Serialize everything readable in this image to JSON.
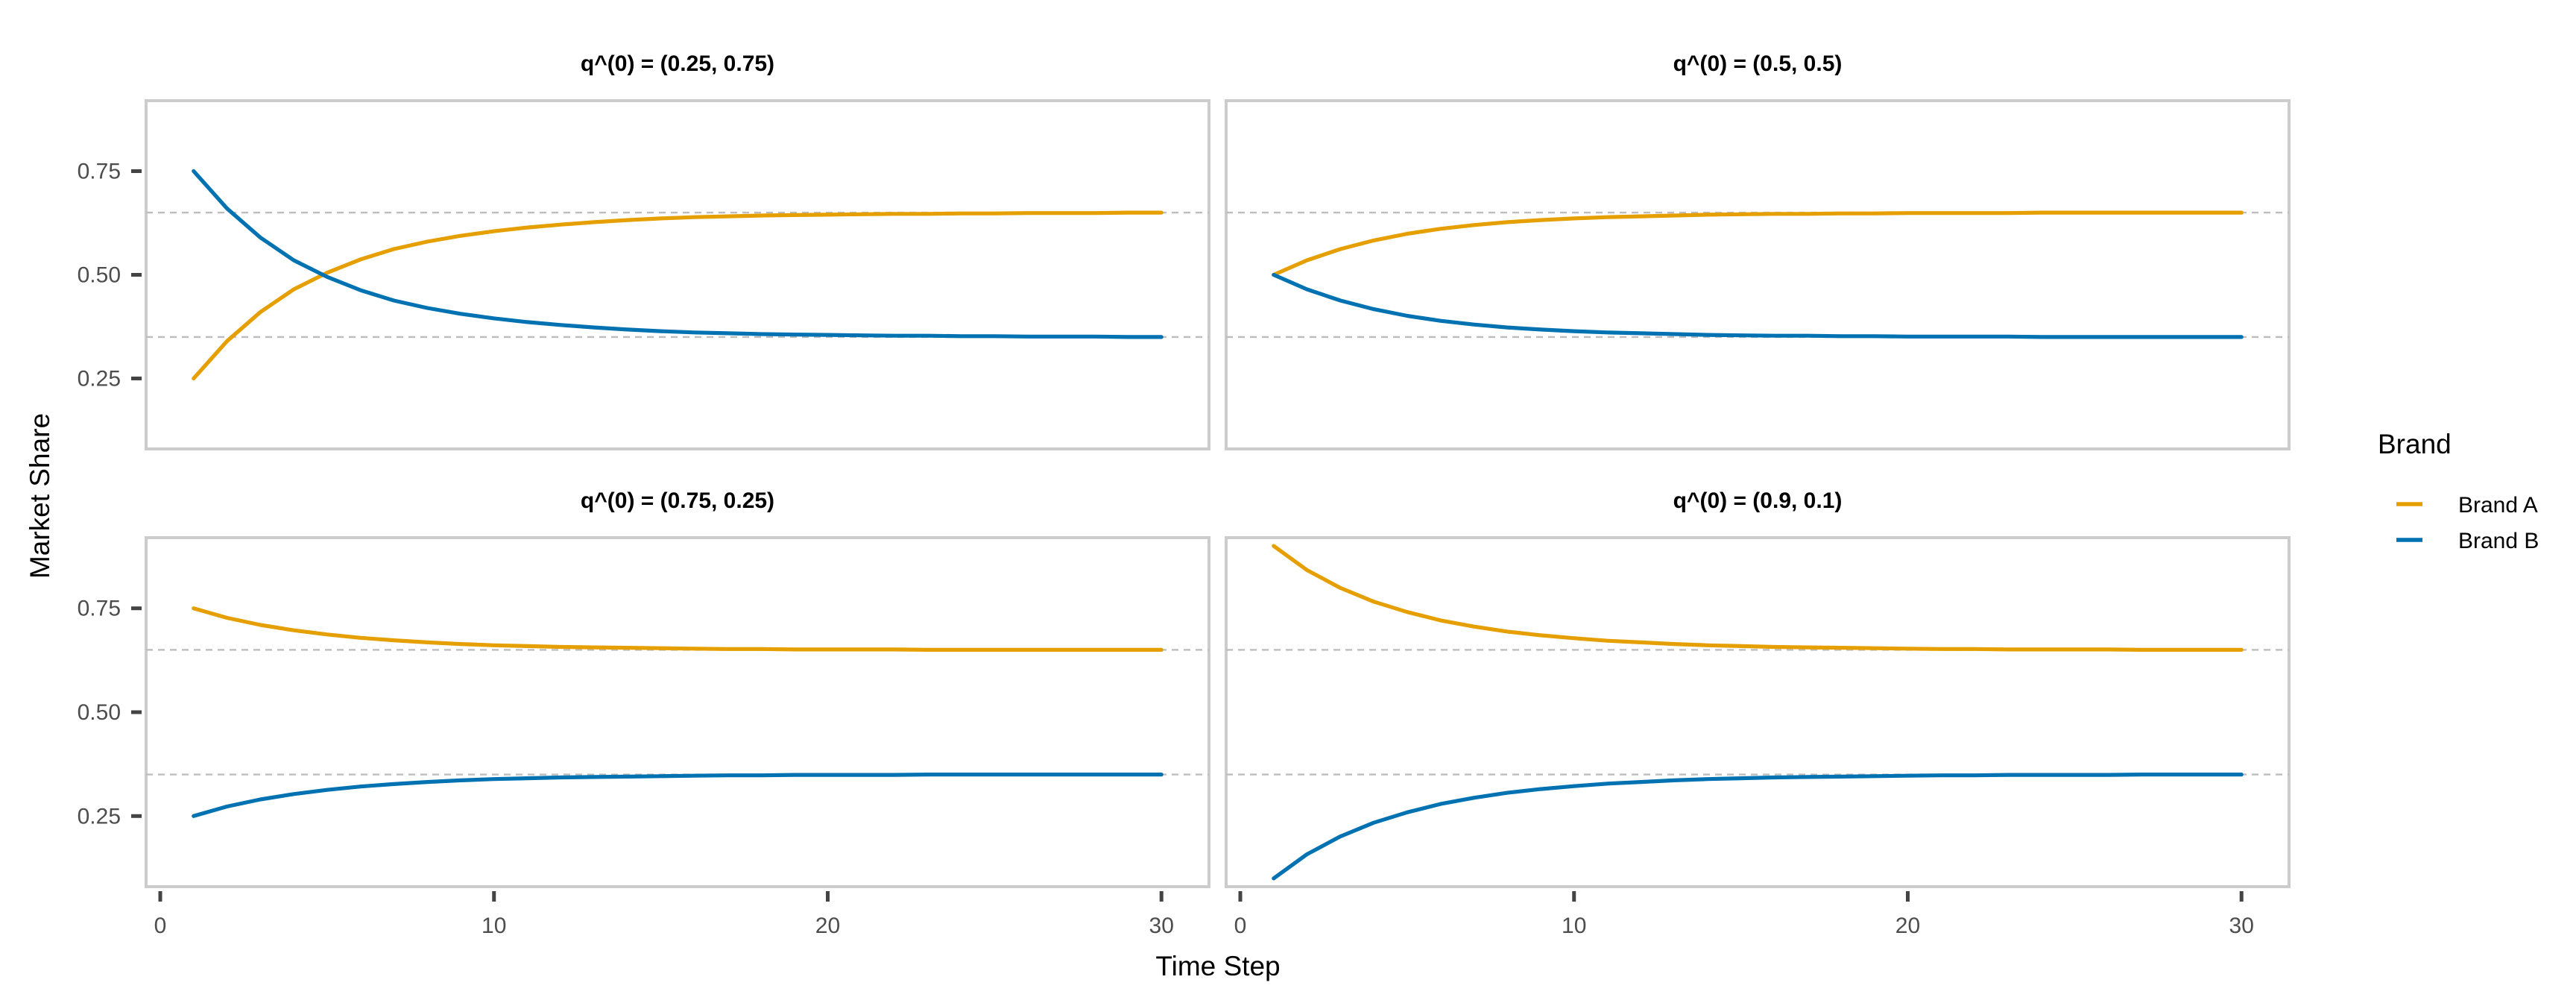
{
  "colors": {
    "brand_a": "#E69F00",
    "brand_b": "#0072B2",
    "reference_line": "#bdbdbd",
    "panel_border": "#cccccc"
  },
  "chart_data": {
    "type": "line",
    "xlabel": "Time Step",
    "ylabel": "Market Share",
    "xlim": [
      0,
      31
    ],
    "ylim": [
      0.08,
      0.92
    ],
    "x_ticks": [
      0,
      10,
      20,
      30
    ],
    "y_ticks": [
      0.25,
      0.5,
      0.75
    ],
    "y_tick_labels": [
      "0.25",
      "0.50",
      "0.75"
    ],
    "grid": false,
    "legend": {
      "title": "Brand",
      "position": "right",
      "entries": [
        "Brand A",
        "Brand B"
      ]
    },
    "reference_lines": [
      0.65,
      0.35
    ],
    "x": [
      1,
      2,
      3,
      4,
      5,
      6,
      7,
      8,
      9,
      10,
      11,
      12,
      13,
      14,
      15,
      16,
      17,
      18,
      19,
      20,
      21,
      22,
      23,
      24,
      25,
      26,
      27,
      28,
      29,
      30
    ],
    "panels": [
      {
        "title": "q^(0) = (0.25, 0.75)",
        "series": [
          {
            "name": "Brand A",
            "values": [
              0.25,
              0.34,
              0.41,
              0.465,
              0.505,
              0.537,
              0.562,
              0.58,
              0.594,
              0.605,
              0.614,
              0.621,
              0.627,
              0.632,
              0.636,
              0.639,
              0.641,
              0.643,
              0.644,
              0.645,
              0.646,
              0.647,
              0.647,
              0.648,
              0.648,
              0.649,
              0.649,
              0.649,
              0.65,
              0.65
            ]
          },
          {
            "name": "Brand B",
            "values": [
              0.75,
              0.66,
              0.59,
              0.535,
              0.495,
              0.463,
              0.438,
              0.42,
              0.406,
              0.395,
              0.386,
              0.379,
              0.373,
              0.368,
              0.364,
              0.361,
              0.359,
              0.357,
              0.356,
              0.355,
              0.354,
              0.353,
              0.353,
              0.352,
              0.352,
              0.351,
              0.351,
              0.351,
              0.35,
              0.35
            ]
          }
        ]
      },
      {
        "title": "q^(0) = (0.5, 0.5)",
        "series": [
          {
            "name": "Brand A",
            "values": [
              0.5,
              0.535,
              0.562,
              0.583,
              0.599,
              0.611,
              0.62,
              0.627,
              0.632,
              0.636,
              0.639,
              0.641,
              0.643,
              0.645,
              0.646,
              0.647,
              0.647,
              0.648,
              0.648,
              0.649,
              0.649,
              0.649,
              0.649,
              0.65,
              0.65,
              0.65,
              0.65,
              0.65,
              0.65,
              0.65
            ]
          },
          {
            "name": "Brand B",
            "values": [
              0.5,
              0.465,
              0.438,
              0.417,
              0.401,
              0.389,
              0.38,
              0.373,
              0.368,
              0.364,
              0.361,
              0.359,
              0.357,
              0.355,
              0.354,
              0.353,
              0.353,
              0.352,
              0.352,
              0.351,
              0.351,
              0.351,
              0.351,
              0.35,
              0.35,
              0.35,
              0.35,
              0.35,
              0.35,
              0.35
            ]
          }
        ]
      },
      {
        "title": "q^(0) = (0.75, 0.25)",
        "series": [
          {
            "name": "Brand A",
            "values": [
              0.75,
              0.727,
              0.71,
              0.697,
              0.687,
              0.679,
              0.673,
              0.668,
              0.664,
              0.661,
              0.659,
              0.657,
              0.656,
              0.655,
              0.654,
              0.653,
              0.652,
              0.652,
              0.651,
              0.651,
              0.651,
              0.651,
              0.65,
              0.65,
              0.65,
              0.65,
              0.65,
              0.65,
              0.65,
              0.65
            ]
          },
          {
            "name": "Brand B",
            "values": [
              0.25,
              0.273,
              0.29,
              0.303,
              0.313,
              0.321,
              0.327,
              0.332,
              0.336,
              0.339,
              0.341,
              0.343,
              0.344,
              0.345,
              0.346,
              0.347,
              0.348,
              0.348,
              0.349,
              0.349,
              0.349,
              0.349,
              0.35,
              0.35,
              0.35,
              0.35,
              0.35,
              0.35,
              0.35,
              0.35
            ]
          }
        ]
      },
      {
        "title": "q^(0) = (0.9, 0.1)",
        "series": [
          {
            "name": "Brand A",
            "values": [
              0.9,
              0.842,
              0.799,
              0.766,
              0.741,
              0.721,
              0.706,
              0.694,
              0.685,
              0.678,
              0.672,
              0.668,
              0.664,
              0.661,
              0.659,
              0.657,
              0.656,
              0.655,
              0.654,
              0.653,
              0.652,
              0.652,
              0.651,
              0.651,
              0.651,
              0.651,
              0.65,
              0.65,
              0.65,
              0.65
            ]
          },
          {
            "name": "Brand B",
            "values": [
              0.1,
              0.158,
              0.201,
              0.234,
              0.259,
              0.279,
              0.294,
              0.306,
              0.315,
              0.322,
              0.328,
              0.332,
              0.336,
              0.339,
              0.341,
              0.343,
              0.344,
              0.345,
              0.346,
              0.347,
              0.348,
              0.348,
              0.349,
              0.349,
              0.349,
              0.349,
              0.35,
              0.35,
              0.35,
              0.35
            ]
          }
        ]
      }
    ]
  }
}
